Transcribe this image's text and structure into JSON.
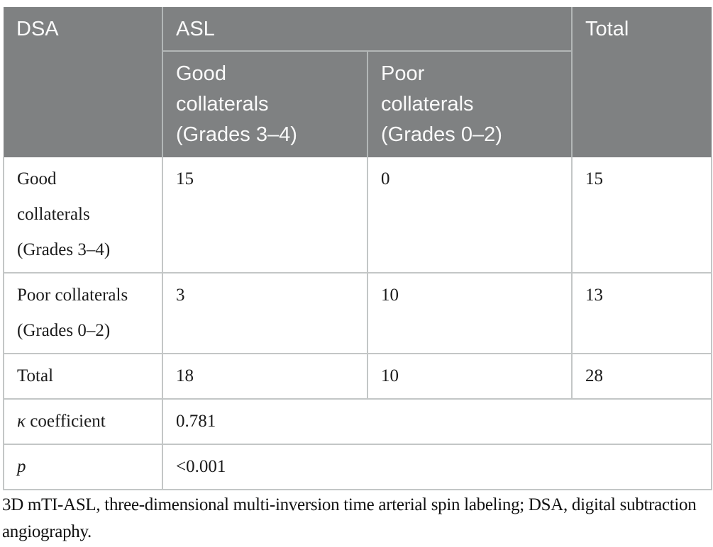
{
  "table": {
    "columns": {
      "dsa": "DSA",
      "asl": "ASL",
      "total": "Total"
    },
    "subcolumns": {
      "good": "Good\ncollaterals\n(Grades 3–4)",
      "poor": "Poor\ncollaterals\n(Grades 0–2)"
    },
    "rows": [
      {
        "label": "Good\ncollaterals\n(Grades 3–4)",
        "good": "15",
        "poor": "0",
        "total": "15"
      },
      {
        "label": "Poor collaterals\n(Grades 0–2)",
        "good": "3",
        "poor": "10",
        "total": "13"
      },
      {
        "label": "Total",
        "good": "18",
        "poor": "10",
        "total": "28"
      }
    ],
    "stats": [
      {
        "symbol": "κ",
        "rest": " coefficient",
        "value": "0.781"
      },
      {
        "symbol": "p",
        "rest": "",
        "value": "<0.001"
      }
    ]
  },
  "footnote": "3D mTI-ASL, three-dimensional multi-inversion time arterial spin labeling; DSA, digital subtraction angiography.",
  "colors": {
    "header_bg": "#7f8182",
    "header_text": "#fafafa",
    "body_text": "#1b1b1b",
    "header_line": "#b3b7b7",
    "body_line": "#c3c6c6"
  }
}
